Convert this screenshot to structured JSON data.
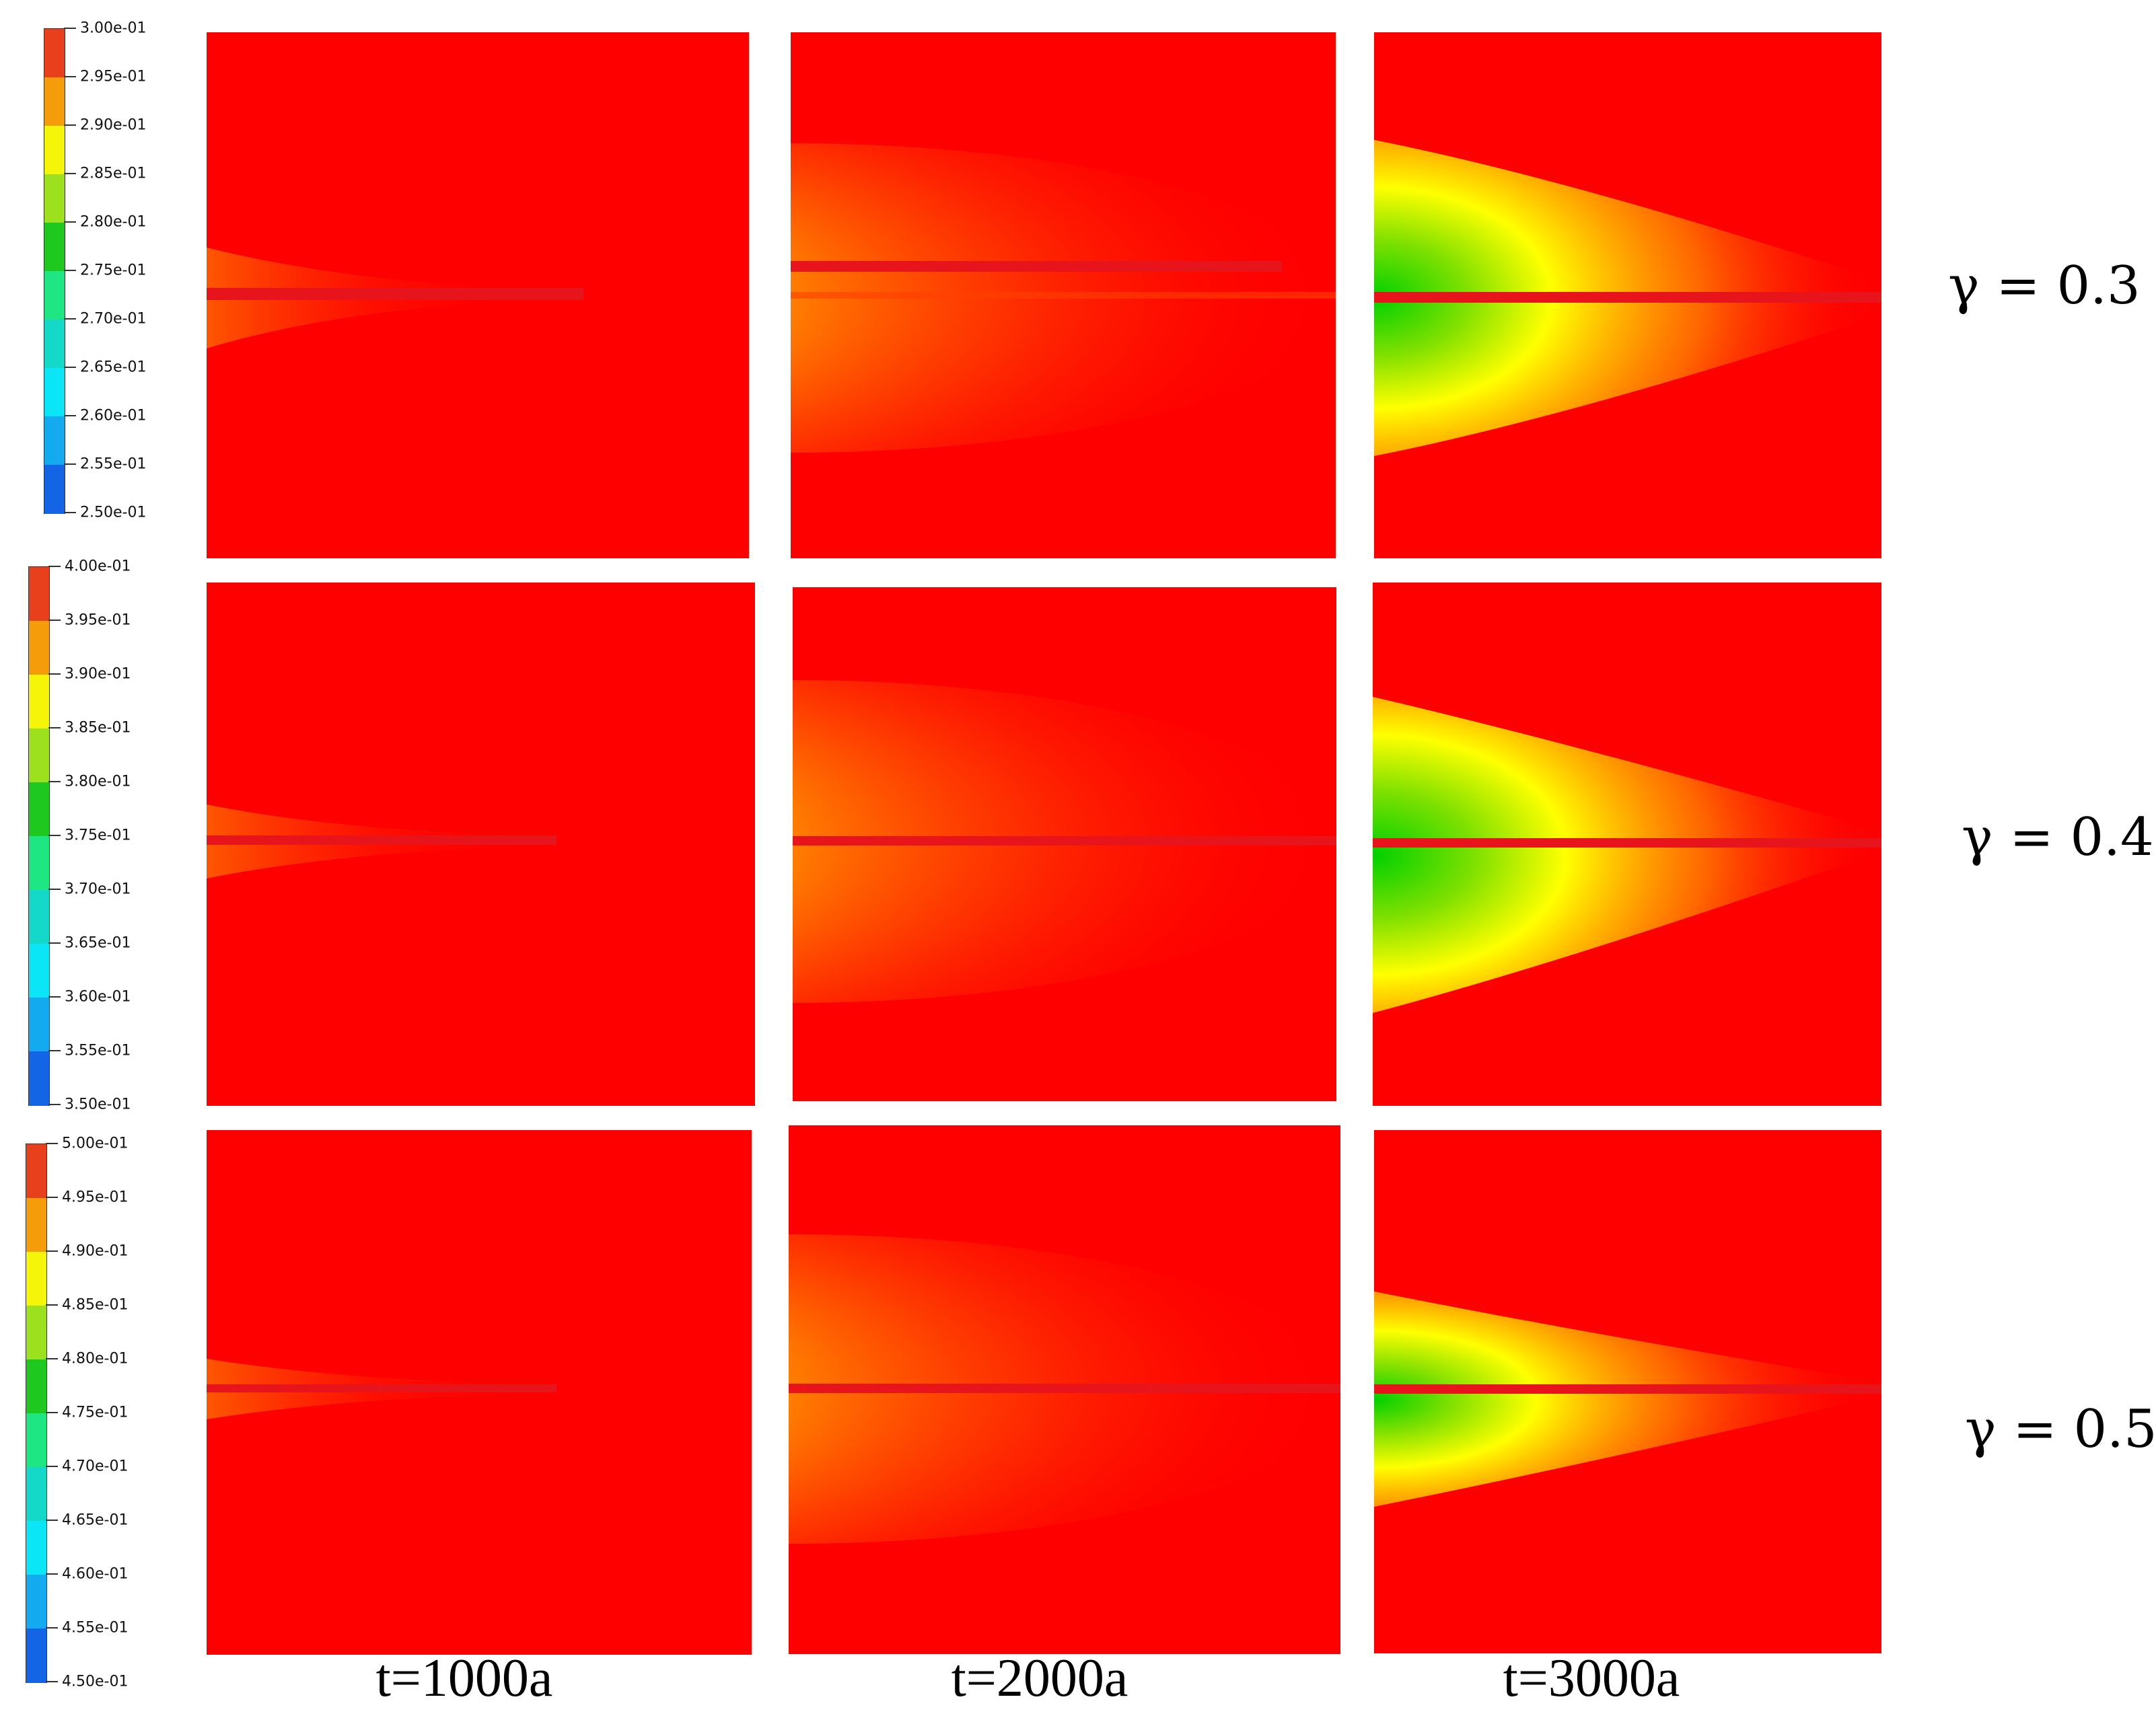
{
  "colorbars": [
    {
      "ticks": [
        "3.00e-01",
        "2.95e-01",
        "2.90e-01",
        "2.85e-01",
        "2.80e-01",
        "2.75e-01",
        "2.70e-01",
        "2.65e-01",
        "2.60e-01",
        "2.55e-01",
        "2.50e-01"
      ],
      "range": [
        0.25,
        0.3
      ]
    },
    {
      "ticks": [
        "4.00e-01",
        "3.95e-01",
        "3.90e-01",
        "3.85e-01",
        "3.80e-01",
        "3.75e-01",
        "3.70e-01",
        "3.65e-01",
        "3.60e-01",
        "3.55e-01",
        "3.50e-01"
      ],
      "range": [
        0.35,
        0.4
      ]
    },
    {
      "ticks": [
        "5.00e-01",
        "4.95e-01",
        "4.90e-01",
        "4.85e-01",
        "4.80e-01",
        "4.75e-01",
        "4.70e-01",
        "4.65e-01",
        "4.60e-01",
        "4.55e-01",
        "4.50e-01"
      ],
      "range": [
        0.45,
        0.5
      ]
    }
  ],
  "colorbar_colors": [
    "#e8401c",
    "#f59c0b",
    "#f5f50a",
    "#9de01e",
    "#1ec81e",
    "#1ee682",
    "#14d8c8",
    "#0ae6f5",
    "#14aaf0",
    "#1464e6",
    "#1414e6"
  ],
  "rows": [
    {
      "gamma_label": "γ = 0.3"
    },
    {
      "gamma_label": "γ = 0.4"
    },
    {
      "gamma_label": "γ = 0.5"
    }
  ],
  "columns": [
    {
      "time_label": "t=1000a"
    },
    {
      "time_label": "t=2000a"
    },
    {
      "time_label": "t=3000a"
    }
  ],
  "panel_background_color": "#fe0000",
  "fracture_color": "#e8141c"
}
